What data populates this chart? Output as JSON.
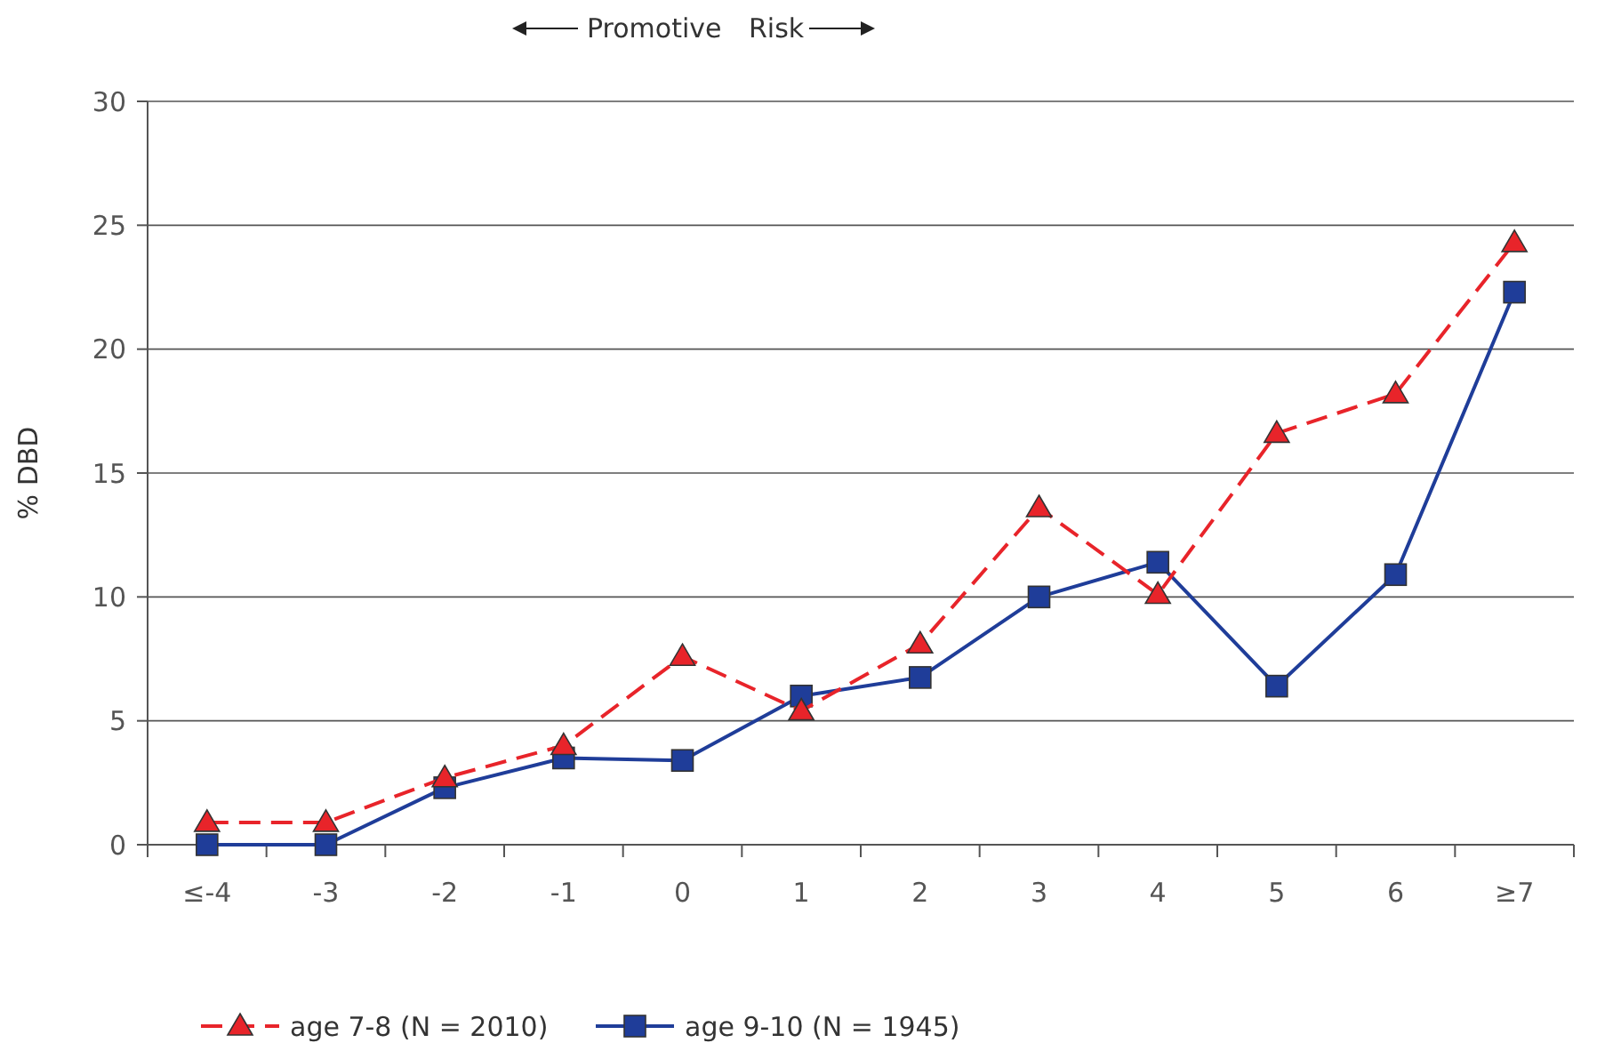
{
  "chart_data": {
    "type": "line",
    "ylabel": "% DBD",
    "categories": [
      "≤-4",
      "-3",
      "-2",
      "-1",
      "0",
      "1",
      "2",
      "3",
      "4",
      "5",
      "6",
      "≥7"
    ],
    "ylim": [
      0,
      30
    ],
    "yticks": [
      0,
      5,
      10,
      15,
      20,
      25,
      30
    ],
    "grid": "y",
    "legend": "bottom",
    "annotations": [
      "Promotive",
      "Risk"
    ],
    "series": [
      {
        "name": "age 7-8 (N = 2010)",
        "color": "#e8242a",
        "marker": "triangle",
        "line_style": "dashed",
        "values": [
          0.9,
          0.9,
          2.7,
          4.0,
          7.6,
          5.4,
          8.1,
          13.6,
          10.1,
          16.6,
          18.2,
          24.3
        ]
      },
      {
        "name": "age 9-10 (N = 1945)",
        "color": "#1f3d99",
        "marker": "square",
        "line_style": "solid",
        "values": [
          0,
          0,
          2.3,
          3.5,
          3.4,
          6.0,
          6.75,
          10.0,
          11.4,
          6.4,
          10.9,
          22.3
        ]
      }
    ]
  }
}
